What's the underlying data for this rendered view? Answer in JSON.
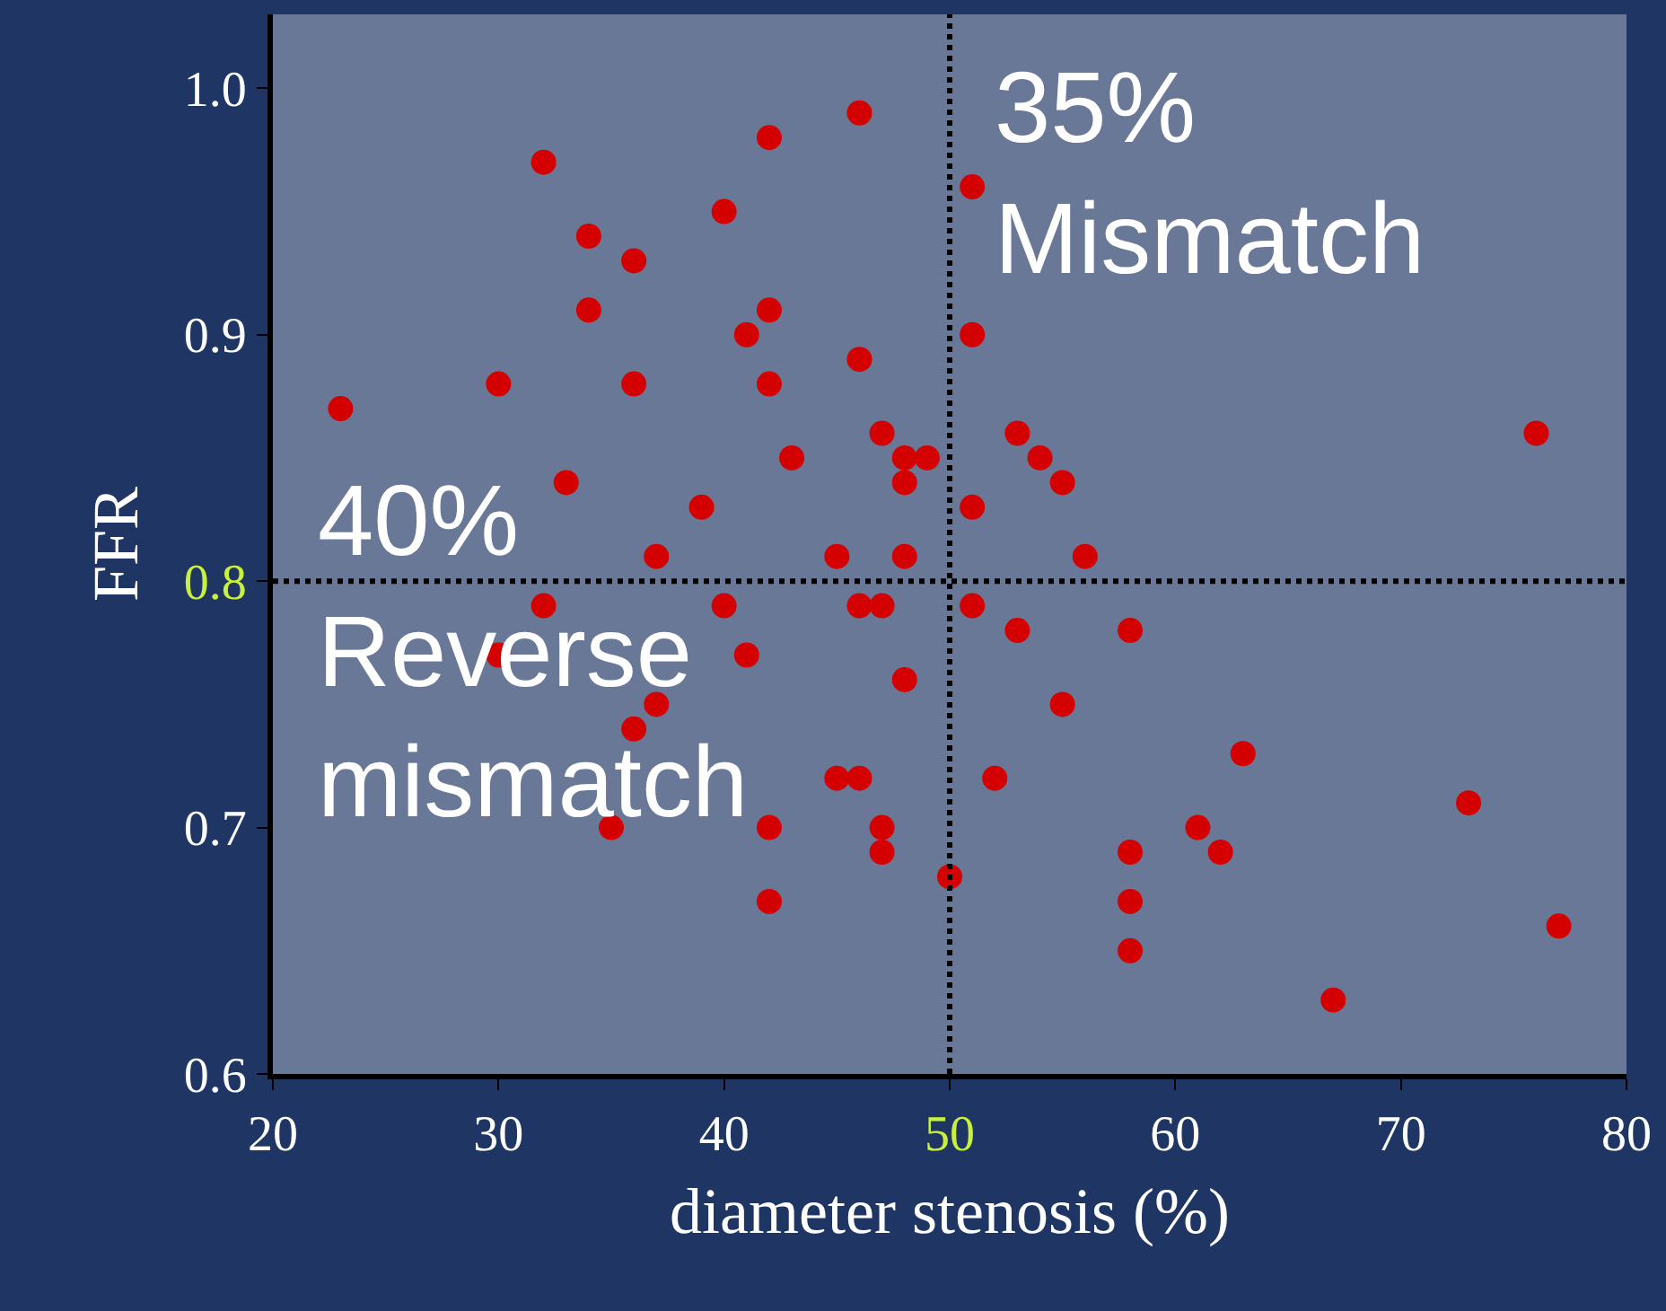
{
  "chart_data": {
    "type": "scatter",
    "xlabel": "diameter stenosis (%)",
    "ylabel": "FFR",
    "xlim": [
      20,
      80
    ],
    "xticks": [
      20,
      30,
      40,
      50,
      60,
      70,
      80
    ],
    "ylim": [
      0.6,
      1.03
    ],
    "yticks": [
      0.6,
      0.7,
      {
        "value": 0.8,
        "label": "0.8"
      },
      0.9,
      {
        "value": 1.0,
        "label": "1.0"
      }
    ],
    "marker": "circle",
    "grid": false,
    "series": [
      {
        "color": "#d40000",
        "x": [
          23,
          32,
          30,
          33,
          34,
          34,
          36,
          36,
          37,
          39,
          40,
          41,
          42,
          42,
          42,
          43,
          45,
          46,
          46,
          47,
          48,
          48,
          48,
          49,
          51,
          51,
          51,
          53,
          54,
          55,
          56,
          76,
          32,
          30,
          37,
          36,
          35,
          40,
          41,
          42,
          42,
          45,
          46,
          47,
          46,
          47,
          47,
          48,
          50,
          51,
          53,
          58,
          55,
          52,
          63,
          73,
          61,
          62,
          58,
          58,
          58,
          77,
          67
        ],
        "values": [
          0.87,
          0.97,
          0.88,
          0.84,
          0.94,
          0.91,
          0.93,
          0.88,
          0.81,
          0.83,
          0.95,
          0.9,
          0.98,
          0.91,
          0.88,
          0.85,
          0.81,
          0.99,
          0.89,
          0.86,
          0.85,
          0.84,
          0.81,
          0.85,
          0.96,
          0.9,
          0.83,
          0.86,
          0.85,
          0.84,
          0.81,
          0.86,
          0.79,
          0.77,
          0.75,
          0.74,
          0.7,
          0.79,
          0.77,
          0.7,
          0.67,
          0.72,
          0.79,
          0.79,
          0.72,
          0.7,
          0.69,
          0.76,
          0.68,
          0.79,
          0.78,
          0.78,
          0.75,
          0.72,
          0.73,
          0.71,
          0.7,
          0.69,
          0.69,
          0.67,
          0.65,
          0.66,
          0.63
        ]
      }
    ],
    "ref_lines": [
      {
        "axis": "x",
        "value": 50,
        "color": "#000000",
        "line_style": "dotted"
      },
      {
        "axis": "y",
        "value": 0.8,
        "color": "#000000",
        "line_style": "dotted"
      }
    ],
    "annotations": [
      "35%\nMismatch",
      "40%\nReverse\nmismatch"
    ]
  }
}
